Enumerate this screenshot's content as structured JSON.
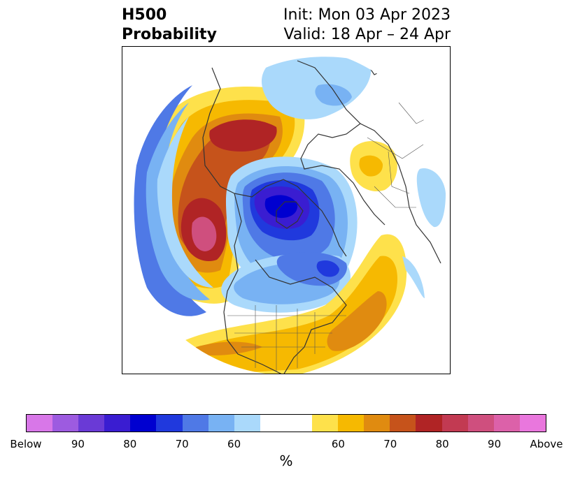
{
  "title": {
    "line1": "H500",
    "line2": "Probability",
    "init": "Init: Mon 03 Apr 2023",
    "valid": "Valid: 18 Apr – 24 Apr"
  },
  "colorbar": {
    "colors": [
      "#d877e8",
      "#9d5be0",
      "#6a3ad6",
      "#3a1dd1",
      "#0000d0",
      "#2039dd",
      "#4f79e6",
      "#78b2f3",
      "#aad9fb",
      "#ffffff",
      "#fee14b",
      "#f6b901",
      "#e08b10",
      "#c6531b",
      "#b02425",
      "#c23a52",
      "#cf4f7e",
      "#dc61a9",
      "#e977dd"
    ],
    "tick_labels": [
      "Below",
      "90",
      "80",
      "70",
      "60",
      "60",
      "70",
      "80",
      "90",
      "Above"
    ],
    "unit": "%"
  },
  "map": {
    "projection": "north-polar-stereographic",
    "region": "Northern Hemisphere",
    "colors": {
      "land_border": "#333333",
      "below_light": "#aad9fb",
      "below_mid": "#78b2f3",
      "below_strong": "#4f79e6",
      "below_deep": "#2039dd",
      "below_max": "#3a1dd1",
      "above_light": "#fee14b",
      "above_mid": "#f6b901",
      "above_strong": "#e08b10",
      "above_deep": "#c6531b",
      "above_max": "#b02425",
      "above_peak": "#cf4f7e"
    }
  }
}
